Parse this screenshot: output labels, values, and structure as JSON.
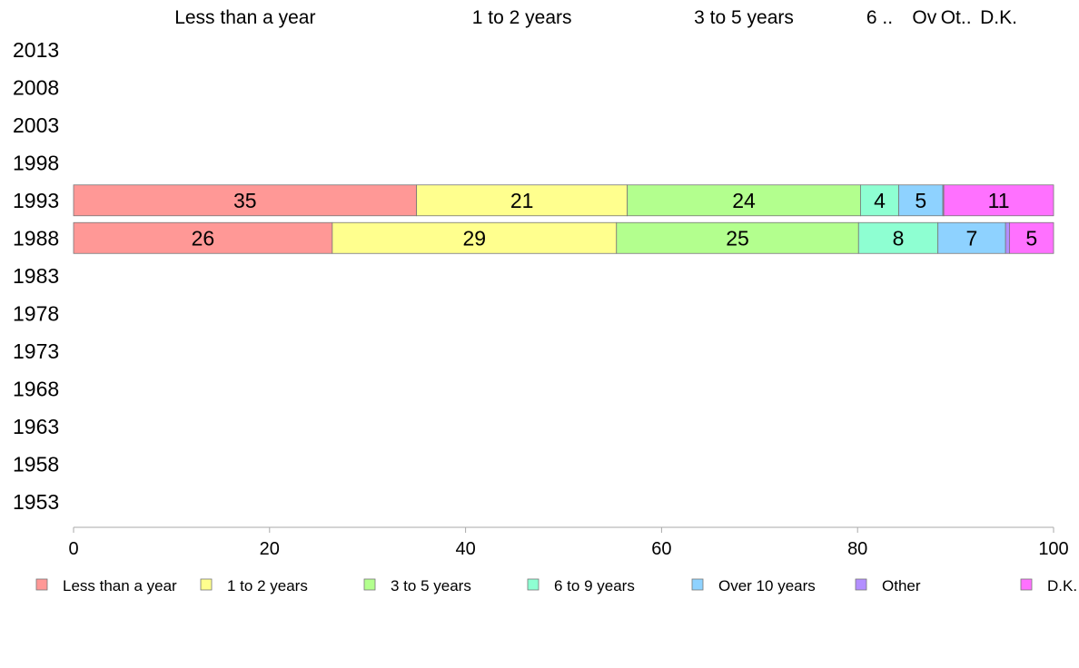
{
  "chart_data": {
    "type": "bar",
    "orientation": "horizontal",
    "stacked": true,
    "title": "",
    "xlabel": "",
    "ylabel": "",
    "xlim": [
      0,
      100
    ],
    "x_ticks": [
      0,
      20,
      40,
      60,
      80,
      100
    ],
    "grid": false,
    "legend_position": "bottom",
    "categories": [
      "2013",
      "2008",
      "2003",
      "1998",
      "1993",
      "1988",
      "1983",
      "1978",
      "1973",
      "1968",
      "1963",
      "1958",
      "1953"
    ],
    "top_labels": [
      "Less than a year",
      "1 to 2 years",
      "3 to 5 years",
      "6 ..",
      "Ov",
      "Ot..",
      "D.K."
    ],
    "series": [
      {
        "name": "Less than a year",
        "color": "#FF9896",
        "values": [
          null,
          null,
          null,
          null,
          35,
          26.4,
          null,
          null,
          null,
          null,
          null,
          null,
          null
        ],
        "labels": [
          "",
          "",
          "",
          "",
          "35",
          "26",
          "",
          "",
          "",
          "",
          "",
          "",
          ""
        ]
      },
      {
        "name": "1 to 2 years",
        "color": "#FFFF8E",
        "values": [
          null,
          null,
          null,
          null,
          21.5,
          29,
          null,
          null,
          null,
          null,
          null,
          null,
          null
        ],
        "labels": [
          "",
          "",
          "",
          "",
          "21",
          "29",
          "",
          "",
          "",
          "",
          "",
          "",
          ""
        ]
      },
      {
        "name": "3 to 5 years",
        "color": "#B3FF8E",
        "values": [
          null,
          null,
          null,
          null,
          23.8,
          24.7,
          null,
          null,
          null,
          null,
          null,
          null,
          null
        ],
        "labels": [
          "",
          "",
          "",
          "",
          "24",
          "25",
          "",
          "",
          "",
          "",
          "",
          "",
          ""
        ]
      },
      {
        "name": "6 to 9 years",
        "color": "#8EFFD2",
        "values": [
          null,
          null,
          null,
          null,
          3.9,
          8.1,
          null,
          null,
          null,
          null,
          null,
          null,
          null
        ],
        "labels": [
          "",
          "",
          "",
          "",
          "4",
          "8",
          "",
          "",
          "",
          "",
          "",
          "",
          ""
        ]
      },
      {
        "name": "Over 10 years",
        "color": "#8ED2FF",
        "values": [
          null,
          null,
          null,
          null,
          4.5,
          6.9,
          null,
          null,
          null,
          null,
          null,
          null,
          null
        ],
        "labels": [
          "",
          "",
          "",
          "",
          "5",
          "7",
          "",
          "",
          "",
          "",
          "",
          "",
          ""
        ]
      },
      {
        "name": "Other",
        "color": "#B38EFF",
        "values": [
          null,
          null,
          null,
          null,
          0.1,
          0.4,
          null,
          null,
          null,
          null,
          null,
          null,
          null
        ],
        "labels": [
          "",
          "",
          "",
          "",
          "",
          "",
          "",
          "",
          "",
          "",
          "",
          "",
          ""
        ]
      },
      {
        "name": "D.K.",
        "color": "#FF71FF",
        "values": [
          null,
          null,
          null,
          null,
          11.2,
          4.5,
          null,
          null,
          null,
          null,
          null,
          null,
          null
        ],
        "labels": [
          "",
          "",
          "",
          "",
          "11",
          "5",
          "",
          "",
          "",
          "",
          "",
          "",
          ""
        ]
      }
    ]
  }
}
